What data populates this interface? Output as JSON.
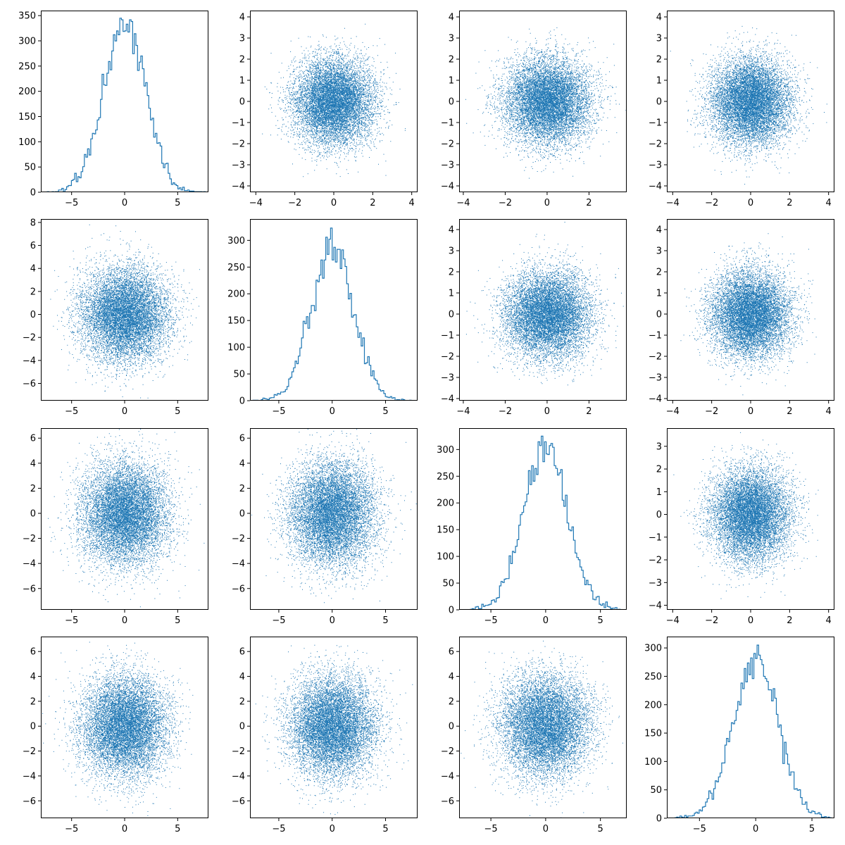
{
  "chart_data": {
    "type": "scatter-matrix",
    "grid": false,
    "series_color": "#1f77b4",
    "layout": "4x4 grid; diagonal panels are step histograms, off-diagonal panels are scatter plots of 10000 normally distributed points",
    "panels": [
      {
        "row": 0,
        "col": 0,
        "type": "histogram",
        "xlim": [
          -7.9,
          7.9
        ],
        "ylim": [
          0,
          360
        ],
        "xticks": [
          -5,
          0,
          5
        ],
        "yticks": [
          0,
          50,
          100,
          150,
          200,
          250,
          300,
          350
        ],
        "x_sd": 2.0,
        "peak": 345,
        "n": 10000
      },
      {
        "row": 0,
        "col": 1,
        "type": "scatter",
        "xlim": [
          -4.3,
          4.3
        ],
        "ylim": [
          -4.3,
          4.3
        ],
        "xticks": [
          -4,
          -2,
          0,
          2,
          4
        ],
        "yticks": [
          -4,
          -3,
          -2,
          -1,
          0,
          1,
          2,
          3,
          4
        ],
        "x_sd": 1.0,
        "y_sd": 1.0,
        "n": 10000
      },
      {
        "row": 0,
        "col": 2,
        "type": "scatter",
        "xlim": [
          -4.2,
          3.8
        ],
        "ylim": [
          -4.3,
          4.3
        ],
        "xticks": [
          -4,
          -2,
          0,
          2
        ],
        "yticks": [
          -4,
          -3,
          -2,
          -1,
          0,
          1,
          2,
          3,
          4
        ],
        "x_sd": 1.0,
        "y_sd": 1.0,
        "n": 10000
      },
      {
        "row": 0,
        "col": 3,
        "type": "scatter",
        "xlim": [
          -4.3,
          4.3
        ],
        "ylim": [
          -4.3,
          4.3
        ],
        "xticks": [
          -4,
          -2,
          0,
          2,
          4
        ],
        "yticks": [
          -4,
          -3,
          -2,
          -1,
          0,
          1,
          2,
          3,
          4
        ],
        "x_sd": 1.0,
        "y_sd": 1.0,
        "n": 10000
      },
      {
        "row": 1,
        "col": 0,
        "type": "scatter",
        "xlim": [
          -7.9,
          7.9
        ],
        "ylim": [
          -7.5,
          8.3
        ],
        "xticks": [
          -5,
          0,
          5
        ],
        "yticks": [
          -6,
          -4,
          -2,
          0,
          2,
          4,
          6,
          8
        ],
        "x_sd": 2.0,
        "y_sd": 2.0,
        "n": 10000
      },
      {
        "row": 1,
        "col": 1,
        "type": "histogram",
        "xlim": [
          -7.7,
          8.0
        ],
        "ylim": [
          0,
          340
        ],
        "xticks": [
          -5,
          0,
          5
        ],
        "yticks": [
          0,
          50,
          100,
          150,
          200,
          250,
          300
        ],
        "x_sd": 2.0,
        "peak": 323,
        "n": 10000
      },
      {
        "row": 1,
        "col": 2,
        "type": "scatter",
        "xlim": [
          -4.2,
          3.8
        ],
        "ylim": [
          -4.1,
          4.5
        ],
        "xticks": [
          -4,
          -2,
          0,
          2
        ],
        "yticks": [
          -4,
          -3,
          -2,
          -1,
          0,
          1,
          2,
          3,
          4
        ],
        "x_sd": 1.0,
        "y_sd": 1.0,
        "n": 10000
      },
      {
        "row": 1,
        "col": 3,
        "type": "scatter",
        "xlim": [
          -4.3,
          4.3
        ],
        "ylim": [
          -4.1,
          4.5
        ],
        "xticks": [
          -4,
          -2,
          0,
          2,
          4
        ],
        "yticks": [
          -4,
          -3,
          -2,
          -1,
          0,
          1,
          2,
          3,
          4
        ],
        "x_sd": 1.0,
        "y_sd": 1.0,
        "n": 10000
      },
      {
        "row": 2,
        "col": 0,
        "type": "scatter",
        "xlim": [
          -7.9,
          7.9
        ],
        "ylim": [
          -7.7,
          6.8
        ],
        "xticks": [
          -5,
          0,
          5
        ],
        "yticks": [
          -6,
          -4,
          -2,
          0,
          2,
          4,
          6
        ],
        "x_sd": 2.0,
        "y_sd": 2.0,
        "n": 10000
      },
      {
        "row": 2,
        "col": 1,
        "type": "scatter",
        "xlim": [
          -7.7,
          8.0
        ],
        "ylim": [
          -7.7,
          6.8
        ],
        "xticks": [
          -5,
          0,
          5
        ],
        "yticks": [
          -6,
          -4,
          -2,
          0,
          2,
          4,
          6
        ],
        "x_sd": 2.0,
        "y_sd": 2.0,
        "n": 10000
      },
      {
        "row": 2,
        "col": 2,
        "type": "histogram",
        "xlim": [
          -7.9,
          7.4
        ],
        "ylim": [
          0,
          340
        ],
        "xticks": [
          -5,
          0,
          5
        ],
        "yticks": [
          0,
          50,
          100,
          150,
          200,
          250,
          300
        ],
        "x_sd": 2.0,
        "peak": 325,
        "n": 10000
      },
      {
        "row": 2,
        "col": 3,
        "type": "scatter",
        "xlim": [
          -4.3,
          4.3
        ],
        "ylim": [
          -4.2,
          3.8
        ],
        "xticks": [
          -4,
          -2,
          0,
          2,
          4
        ],
        "yticks": [
          -4,
          -3,
          -2,
          -1,
          0,
          1,
          2,
          3
        ],
        "x_sd": 1.0,
        "y_sd": 1.0,
        "n": 10000
      },
      {
        "row": 3,
        "col": 0,
        "type": "scatter",
        "xlim": [
          -7.9,
          7.9
        ],
        "ylim": [
          -7.4,
          7.2
        ],
        "xticks": [
          -5,
          0,
          5
        ],
        "yticks": [
          -6,
          -4,
          -2,
          0,
          2,
          4,
          6
        ],
        "x_sd": 2.0,
        "y_sd": 2.0,
        "n": 10000
      },
      {
        "row": 3,
        "col": 1,
        "type": "scatter",
        "xlim": [
          -7.7,
          8.0
        ],
        "ylim": [
          -7.4,
          7.2
        ],
        "xticks": [
          -5,
          0,
          5
        ],
        "yticks": [
          -6,
          -4,
          -2,
          0,
          2,
          4,
          6
        ],
        "x_sd": 2.0,
        "y_sd": 2.0,
        "n": 10000
      },
      {
        "row": 3,
        "col": 2,
        "type": "scatter",
        "xlim": [
          -7.9,
          7.4
        ],
        "ylim": [
          -7.4,
          7.2
        ],
        "xticks": [
          -5,
          0,
          5
        ],
        "yticks": [
          -6,
          -4,
          -2,
          0,
          2,
          4,
          6
        ],
        "x_sd": 2.0,
        "y_sd": 2.0,
        "n": 10000
      },
      {
        "row": 3,
        "col": 3,
        "type": "histogram",
        "xlim": [
          -7.9,
          7.0
        ],
        "ylim": [
          0,
          320
        ],
        "xticks": [
          -5,
          0,
          5
        ],
        "yticks": [
          0,
          50,
          100,
          150,
          200,
          250,
          300
        ],
        "x_sd": 2.0,
        "peak": 305,
        "n": 10000
      }
    ]
  }
}
